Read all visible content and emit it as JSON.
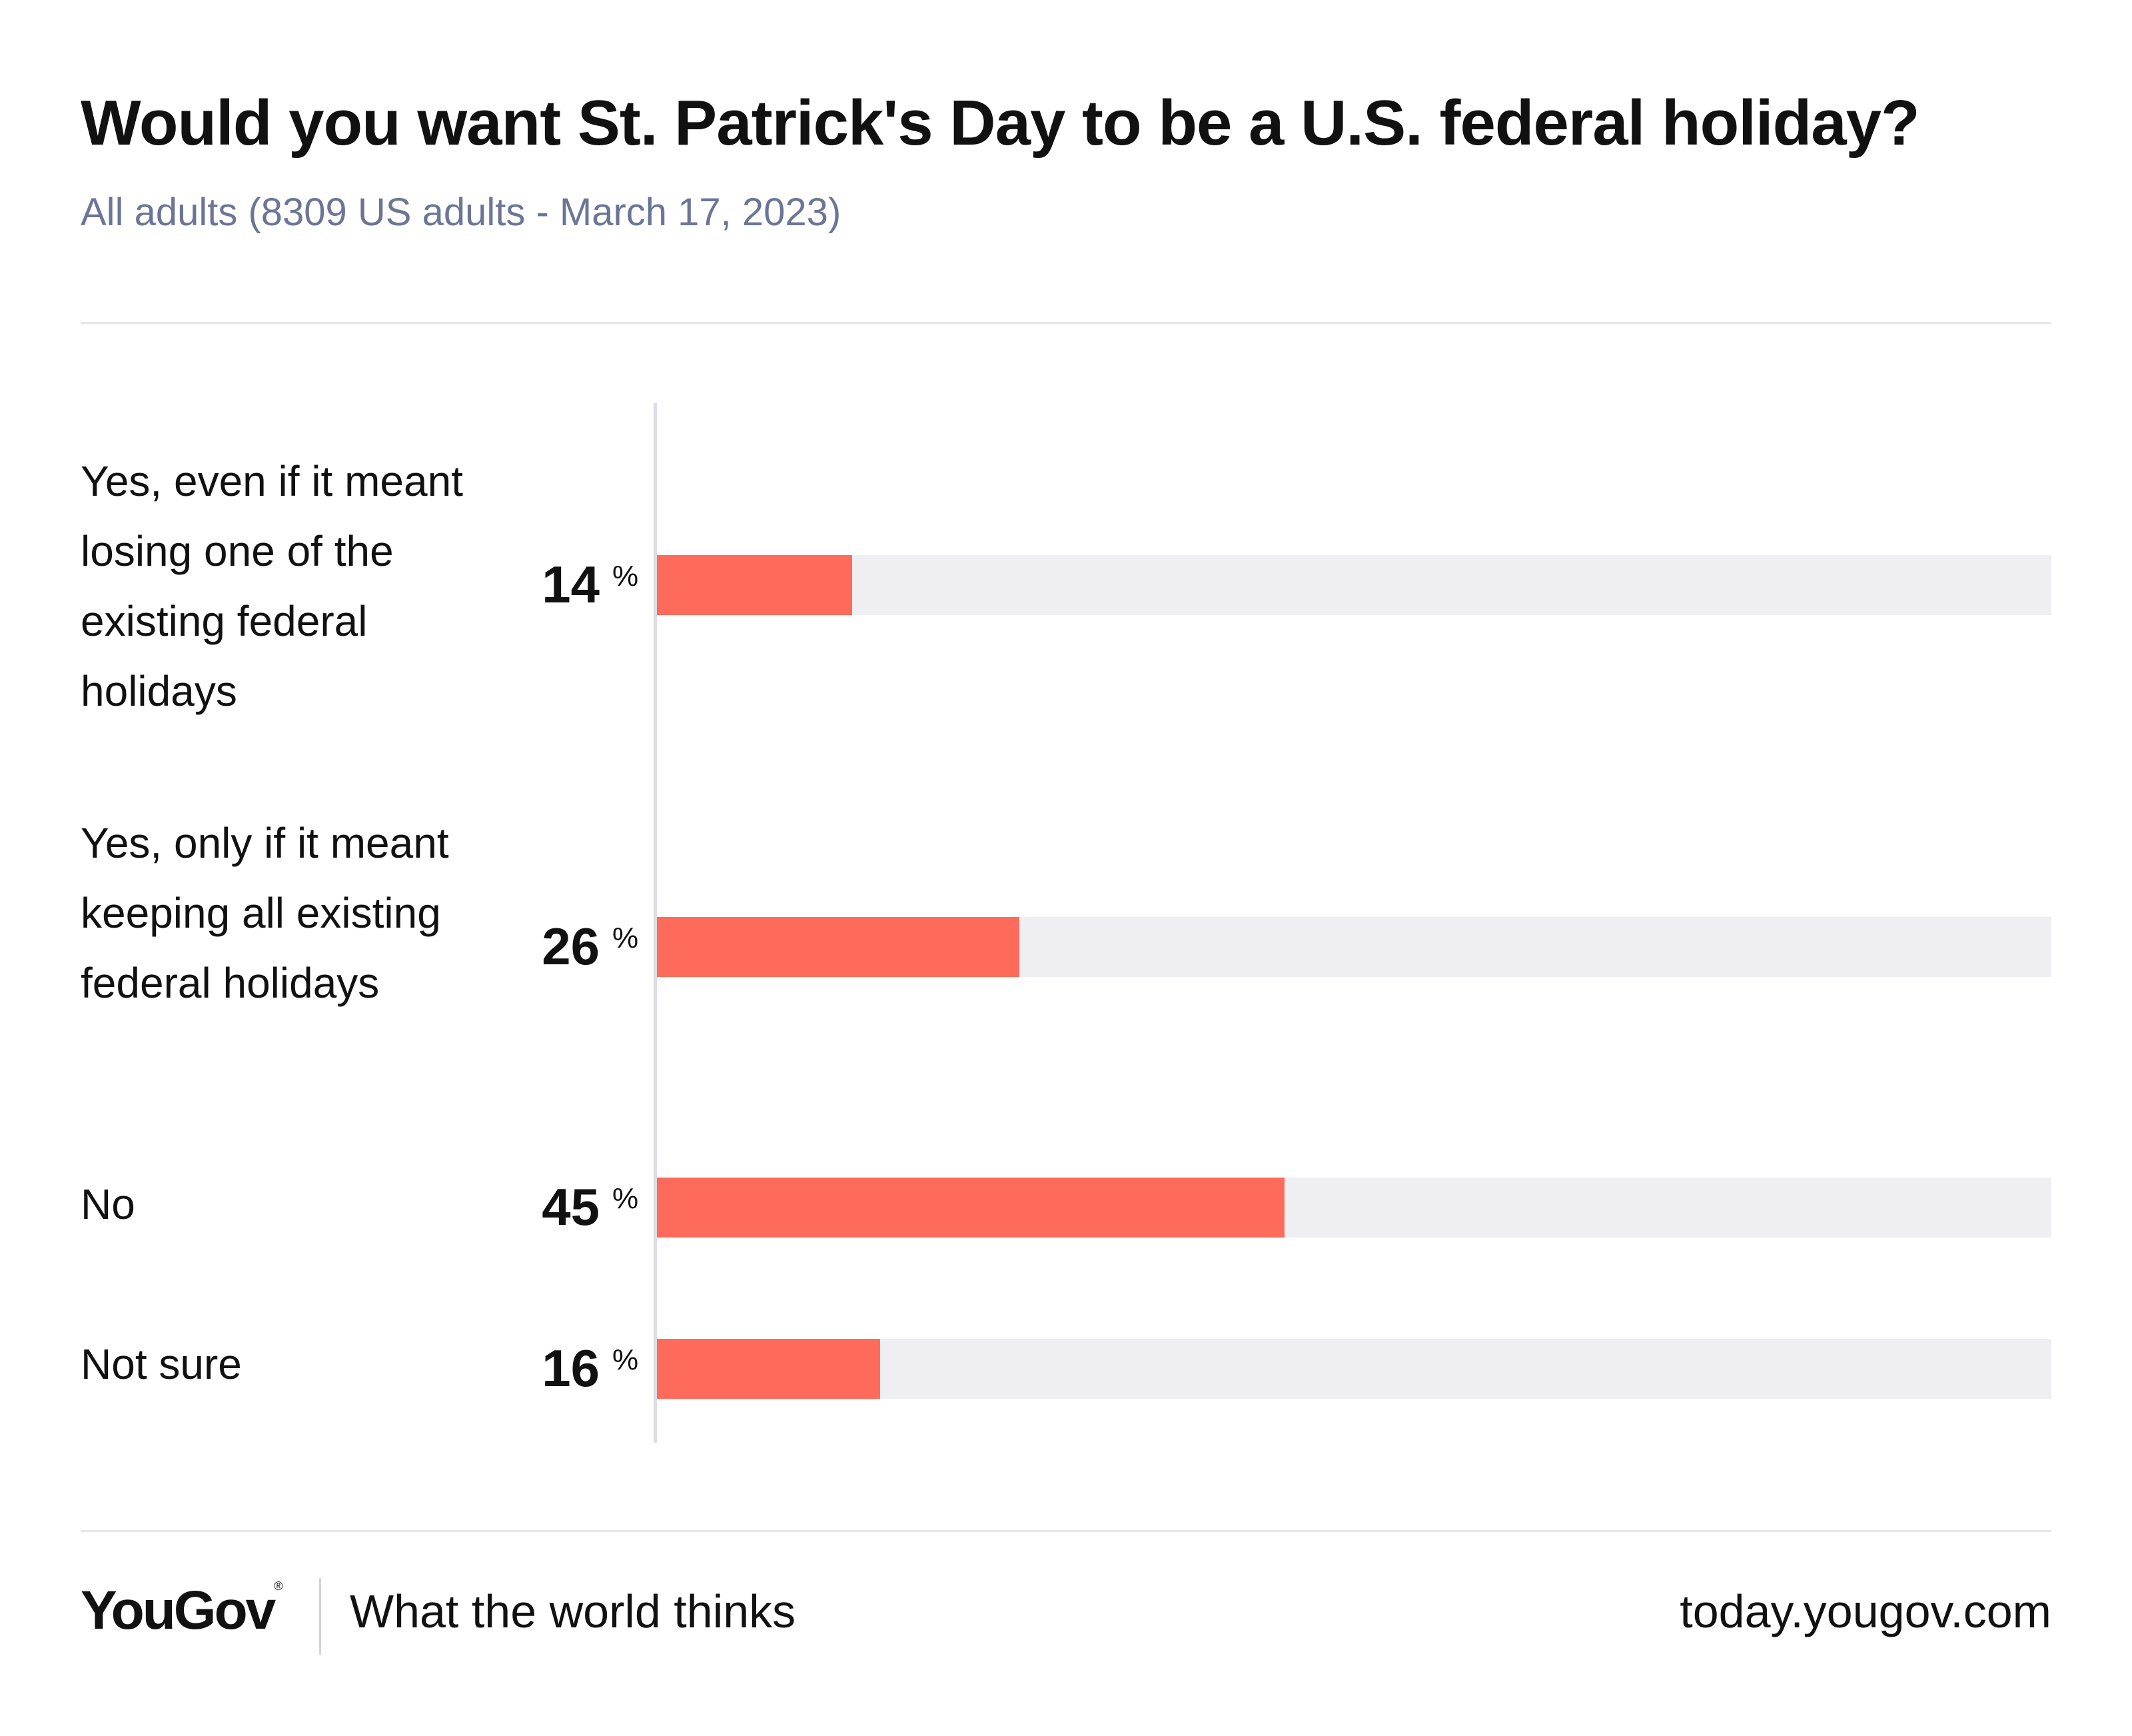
{
  "header": {
    "title": "Would you want St. Patrick's Day to be a U.S. federal holiday?",
    "subtitle": "All adults (8309 US adults - March 17, 2023)"
  },
  "chart_data": {
    "type": "bar",
    "orientation": "horizontal",
    "title": "Would you want St. Patrick's Day to be a U.S. federal holiday?",
    "subtitle": "All adults (8309 US adults - March 17, 2023)",
    "categories": [
      "Yes, even if it meant losing one of the existing federal holidays",
      "Yes, only if it meant keeping all existing federal holidays",
      "No",
      "Not sure"
    ],
    "values": [
      14,
      26,
      45,
      16
    ],
    "unit": "%",
    "xlim": [
      0,
      100
    ],
    "bar_color": "#ff6b5b",
    "track_color": "#efeff3",
    "grid": false,
    "legend": "none"
  },
  "bars": [
    {
      "label": "Yes, even if it meant losing one of the existing federal holidays",
      "value": "14",
      "unit": "%"
    },
    {
      "label": "Yes, only if it meant keeping all existing federal holidays",
      "value": "26",
      "unit": "%"
    },
    {
      "label": "No",
      "value": "45",
      "unit": "%"
    },
    {
      "label": "Not sure",
      "value": "16",
      "unit": "%"
    }
  ],
  "footer": {
    "brand": "YouGov",
    "brand_mark": "®",
    "tagline": "What the world thinks",
    "site": "today.yougov.com"
  }
}
